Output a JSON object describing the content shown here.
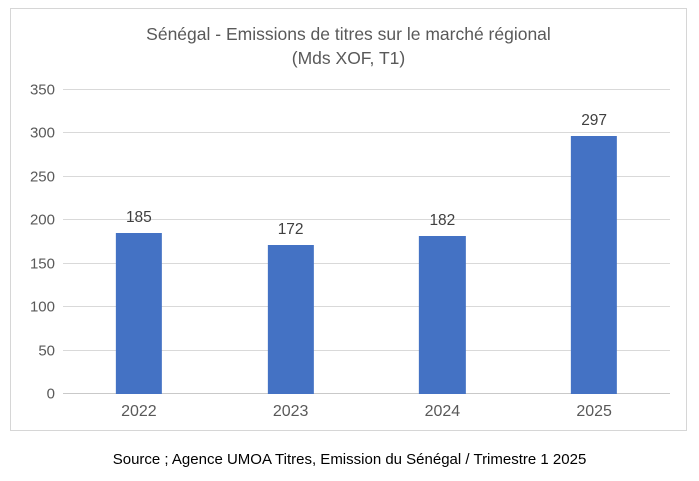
{
  "chart": {
    "title_line1": "Sénégal - Emissions de titres sur le marché régional",
    "title_line2": "(Mds XOF, T1)"
  },
  "chart_data": {
    "type": "bar",
    "title": "Sénégal - Emissions de titres sur le marché régional (Mds XOF, T1)",
    "categories": [
      "2022",
      "2023",
      "2024",
      "2025"
    ],
    "values": [
      185,
      172,
      182,
      297
    ],
    "data_labels_shown": true,
    "xlabel": "",
    "ylabel": "",
    "ylim": [
      0,
      350
    ],
    "yticks": [
      0,
      50,
      100,
      150,
      200,
      250,
      300,
      350
    ],
    "grid": true,
    "legend": "none",
    "bar_color": "#4472c4"
  },
  "colors": {
    "bar": "#4472c4",
    "gridline": "#d9d9d9",
    "axis_text": "#595959",
    "title_text": "#595959",
    "value_label": "#404040",
    "border": "#d6d6d6"
  },
  "source": {
    "text": "Source ; Agence UMOA Titres, Emission du Sénégal / Trimestre 1 2025"
  }
}
